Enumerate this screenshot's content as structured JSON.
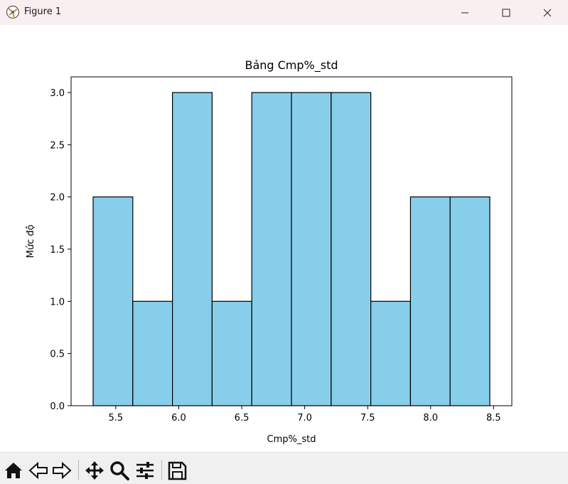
{
  "window": {
    "title": "Figure 1",
    "icons": [
      "app-icon",
      "minimize-icon",
      "maximize-icon",
      "close-icon"
    ]
  },
  "toolbar": {
    "buttons": [
      "home-icon",
      "back-icon",
      "forward-icon",
      "pan-icon",
      "zoom-icon",
      "configure-subplots-icon",
      "save-icon"
    ]
  },
  "chart_data": {
    "type": "bar",
    "title": "Bảng Cmp%_std",
    "xlabel": "Cmp%_std",
    "ylabel": "Mức độ",
    "bin_edges": [
      5.32,
      5.635,
      5.95,
      6.265,
      6.58,
      6.895,
      7.21,
      7.525,
      7.84,
      8.155,
      8.47
    ],
    "values": [
      2,
      1,
      3,
      1,
      3,
      3,
      3,
      1,
      2,
      2
    ],
    "xlim": [
      5.145,
      8.645
    ],
    "ylim": [
      0,
      3.15
    ],
    "xticks": [
      "5.5",
      "6.0",
      "6.5",
      "7.0",
      "7.5",
      "8.0",
      "8.5"
    ],
    "yticks": [
      "0.0",
      "0.5",
      "1.0",
      "1.5",
      "2.0",
      "2.5",
      "3.0"
    ],
    "bar_color": "#87ceeb",
    "edge_color": "#000000",
    "grid": false
  }
}
